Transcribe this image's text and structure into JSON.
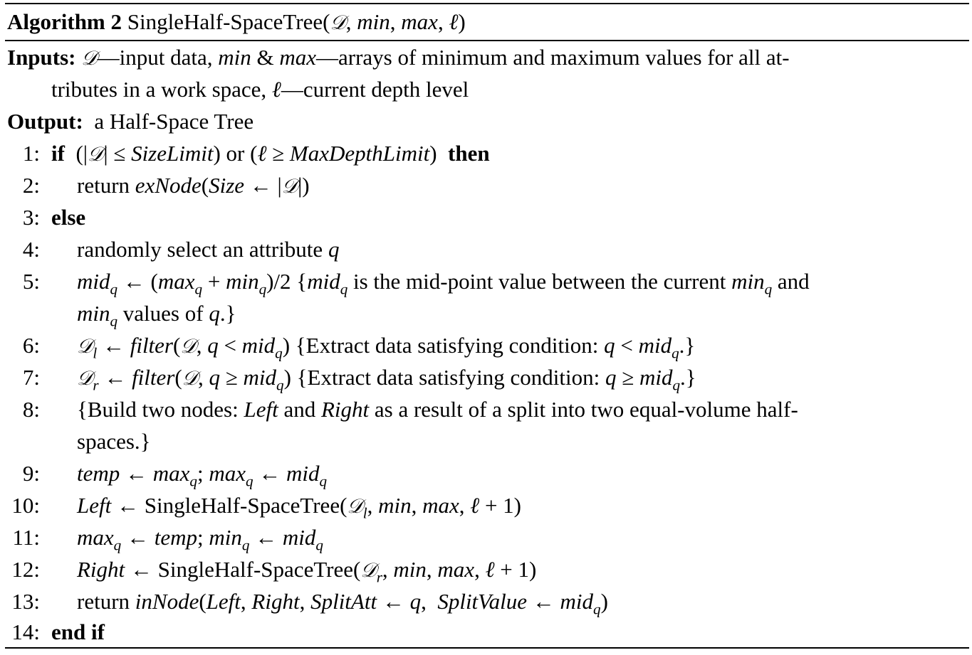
{
  "algorithm": {
    "label": "Algorithm 2",
    "name": "SingleHalf-SpaceTree",
    "params": "(𝒟, min, max, ℓ)"
  },
  "inputs": {
    "label": "Inputs:",
    "line1": "𝒟—input data, min & max—arrays of minimum and maximum values for all at-",
    "line2": "tributes in a work space, ℓ—current depth level"
  },
  "output": {
    "label": "Output:",
    "text": "a Half-Space Tree"
  },
  "steps": [
    {
      "n": "1:",
      "text": "if (|𝒟| ≤ SizeLimit) or (ℓ ≥ MaxDepthLimit) then"
    },
    {
      "n": "2:",
      "text": "return exNode(Size ← |𝒟|)"
    },
    {
      "n": "3:",
      "text": "else"
    },
    {
      "n": "4:",
      "text": "randomly select an attribute q"
    },
    {
      "n": "5:",
      "text": "mid_q ← (max_q + min_q)/2 {mid_q is the mid-point value between the current min_q and",
      "cont": "min_q values of q.}"
    },
    {
      "n": "6:",
      "text": "𝒟_l ← filter(𝒟, q < mid_q) {Extract data satisfying condition: q < mid_q.}"
    },
    {
      "n": "7:",
      "text": "𝒟_r ← filter(𝒟, q ≥ mid_q) {Extract data satisfying condition: q ≥ mid_q.}"
    },
    {
      "n": "8:",
      "text": "{Build two nodes: Left and Right as a result of a split into two equal-volume half-",
      "cont": "spaces.}"
    },
    {
      "n": "9:",
      "text": "temp ← max_q; max_q ← mid_q"
    },
    {
      "n": "10:",
      "text": "Left ← SingleHalf-SpaceTree(𝒟_l, min, max, ℓ + 1)"
    },
    {
      "n": "11:",
      "text": "max_q ← temp; min_q ← mid_q"
    },
    {
      "n": "12:",
      "text": "Right ← SingleHalf-SpaceTree(𝒟_r, min, max, ℓ + 1)"
    },
    {
      "n": "13:",
      "text": "return inNode(Left, Right, SplitAtt ← q, SplitValue ← mid_q)"
    },
    {
      "n": "14:",
      "text": "end if"
    }
  ]
}
